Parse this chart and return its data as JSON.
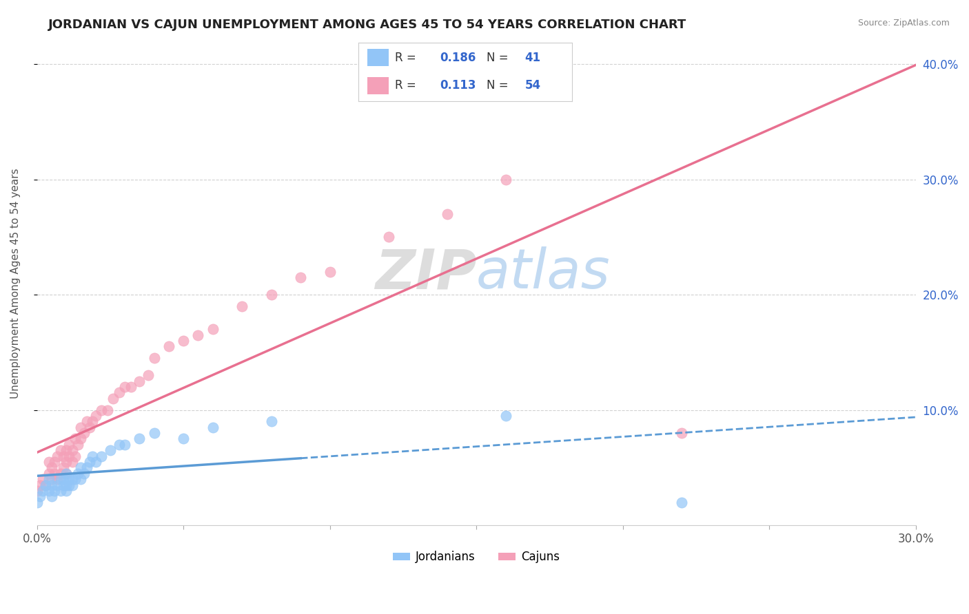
{
  "title": "JORDANIAN VS CAJUN UNEMPLOYMENT AMONG AGES 45 TO 54 YEARS CORRELATION CHART",
  "source": "Source: ZipAtlas.com",
  "ylabel": "Unemployment Among Ages 45 to 54 years",
  "xlim": [
    0.0,
    0.3
  ],
  "ylim": [
    0.0,
    0.42
  ],
  "r_jordanian": 0.186,
  "n_jordanian": 41,
  "r_cajun": 0.113,
  "n_cajun": 54,
  "color_jordanian": "#92c5f7",
  "color_cajun": "#f4a0b8",
  "color_line_jordanian": "#5b9bd5",
  "color_line_cajun": "#e87090",
  "color_text": "#3366cc",
  "background_color": "#ffffff",
  "legend_labels": [
    "Jordanians",
    "Cajuns"
  ],
  "grid_color": "#cccccc",
  "jordanian_x": [
    0.0,
    0.001,
    0.002,
    0.003,
    0.004,
    0.004,
    0.005,
    0.005,
    0.006,
    0.007,
    0.008,
    0.008,
    0.009,
    0.009,
    0.01,
    0.01,
    0.01,
    0.011,
    0.011,
    0.012,
    0.012,
    0.013,
    0.014,
    0.015,
    0.015,
    0.016,
    0.017,
    0.018,
    0.019,
    0.02,
    0.022,
    0.025,
    0.028,
    0.03,
    0.035,
    0.04,
    0.05,
    0.06,
    0.08,
    0.16,
    0.22
  ],
  "jordanian_y": [
    0.02,
    0.025,
    0.03,
    0.035,
    0.03,
    0.04,
    0.025,
    0.035,
    0.03,
    0.035,
    0.03,
    0.04,
    0.035,
    0.04,
    0.03,
    0.035,
    0.045,
    0.035,
    0.04,
    0.035,
    0.04,
    0.04,
    0.045,
    0.04,
    0.05,
    0.045,
    0.05,
    0.055,
    0.06,
    0.055,
    0.06,
    0.065,
    0.07,
    0.07,
    0.075,
    0.08,
    0.075,
    0.085,
    0.09,
    0.095,
    0.02
  ],
  "cajun_x": [
    0.0,
    0.001,
    0.002,
    0.003,
    0.004,
    0.004,
    0.005,
    0.005,
    0.006,
    0.006,
    0.007,
    0.007,
    0.008,
    0.008,
    0.009,
    0.009,
    0.01,
    0.01,
    0.01,
    0.011,
    0.011,
    0.012,
    0.012,
    0.013,
    0.013,
    0.014,
    0.015,
    0.015,
    0.016,
    0.017,
    0.018,
    0.019,
    0.02,
    0.022,
    0.024,
    0.026,
    0.028,
    0.03,
    0.032,
    0.035,
    0.038,
    0.04,
    0.045,
    0.05,
    0.055,
    0.06,
    0.07,
    0.08,
    0.09,
    0.1,
    0.12,
    0.14,
    0.16,
    0.22
  ],
  "cajun_y": [
    0.03,
    0.035,
    0.04,
    0.035,
    0.045,
    0.055,
    0.04,
    0.05,
    0.045,
    0.055,
    0.04,
    0.06,
    0.045,
    0.065,
    0.05,
    0.06,
    0.045,
    0.055,
    0.065,
    0.06,
    0.07,
    0.055,
    0.065,
    0.06,
    0.075,
    0.07,
    0.075,
    0.085,
    0.08,
    0.09,
    0.085,
    0.09,
    0.095,
    0.1,
    0.1,
    0.11,
    0.115,
    0.12,
    0.12,
    0.125,
    0.13,
    0.145,
    0.155,
    0.16,
    0.165,
    0.17,
    0.19,
    0.2,
    0.215,
    0.22,
    0.25,
    0.27,
    0.3,
    0.08
  ]
}
